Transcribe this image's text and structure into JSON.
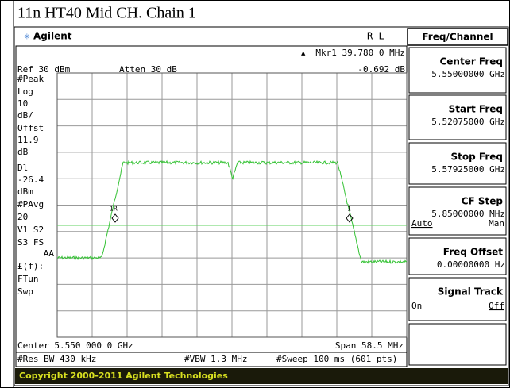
{
  "title": "11n HT40 Mid CH. Chain 1",
  "header": {
    "brand": "Agilent",
    "mode": "R L"
  },
  "display": {
    "ref": "Ref 30 dBm",
    "atten": "Atten 30 dB",
    "marker": "Mkr1  39.780 0 MHz",
    "marker_value": "-0.692 dB",
    "left_labels": [
      "#Peak",
      "Log",
      "10",
      "dB/",
      "Offst",
      "11.9",
      "dB",
      "Dl",
      "-26.4",
      "dBm",
      "#PAvg",
      "20",
      "V1  S2",
      "S3  FS",
      "AA",
      "£(f):",
      "FTun",
      "Swp"
    ],
    "marker_1": "1R",
    "marker_2": "1",
    "center": "Center 5.550 000 0 GHz",
    "span": "Span 58.5 MHz",
    "res_bw": "#Res BW 430 kHz",
    "vbw": "#VBW 1.3 MHz",
    "sweep": "#Sweep 100 ms (601 pts)"
  },
  "menu": {
    "title": "Freq/Channel",
    "items": [
      {
        "label": "Center Freq",
        "value": "5.55000000 GHz"
      },
      {
        "label": "Start Freq",
        "value": "5.52075000 GHz"
      },
      {
        "label": "Stop Freq",
        "value": "5.57925000 GHz"
      },
      {
        "label": "CF Step",
        "value": "5.85000000 MHz",
        "options": [
          "Auto",
          "Man"
        ]
      },
      {
        "label": "Freq Offset",
        "value": "0.00000000  Hz"
      },
      {
        "label": "Signal Track",
        "options": [
          "On",
          "Off"
        ]
      }
    ]
  },
  "copyright": "Copyright 2000-2011 Agilent Technologies"
}
